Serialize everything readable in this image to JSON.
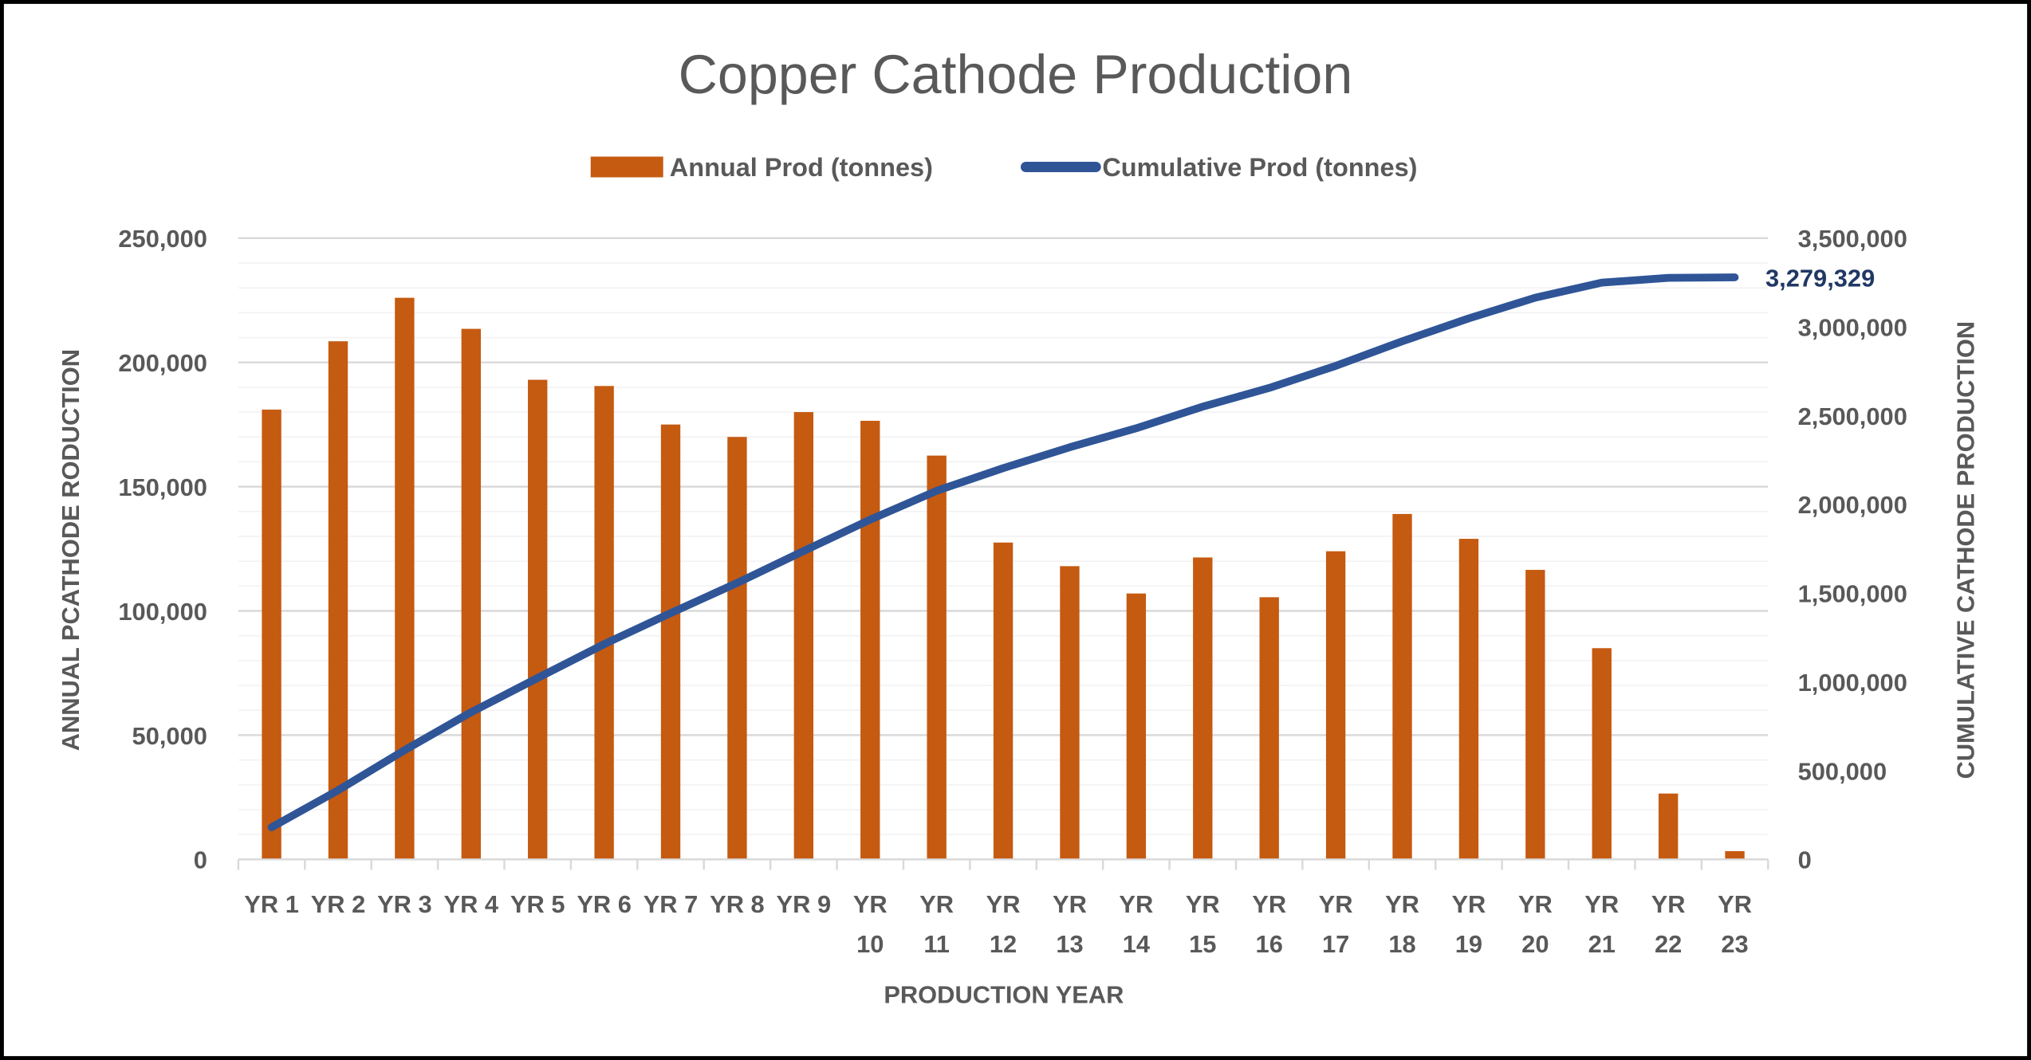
{
  "chart_data": {
    "type": "bar+line",
    "title": "Copper Cathode Production",
    "xlabel": "PRODUCTION YEAR",
    "ylabel": "ANNUAL PCATHODE RODUCTION",
    "y2label": "CUMULATIVE CATHODE PRODUCTION",
    "ylim": [
      0,
      250000
    ],
    "y2lim": [
      0,
      3500000
    ],
    "yticks": [
      "0",
      "50,000",
      "100,000",
      "150,000",
      "200,000",
      "250,000"
    ],
    "y2ticks": [
      "0",
      "500,000",
      "1,000,000",
      "1,500,000",
      "2,000,000",
      "2,500,000",
      "3,000,000",
      "3,500,000"
    ],
    "grid": true,
    "legend_position": "top",
    "categories": [
      "YR 1",
      "YR 2",
      "YR 3",
      "YR 4",
      "YR 5",
      "YR 6",
      "YR 7",
      "YR 8",
      "YR 9",
      "YR 10",
      "YR 11",
      "YR 12",
      "YR 13",
      "YR 14",
      "YR 15",
      "YR 16",
      "YR 17",
      "YR 18",
      "YR 19",
      "YR 20",
      "YR 21",
      "YR 22",
      "YR 23"
    ],
    "series": [
      {
        "name": "Annual Prod (tonnes)",
        "type": "bar",
        "axis": "left",
        "color": "#C55A11",
        "values": [
          181000,
          208500,
          226000,
          213500,
          193000,
          190500,
          175000,
          170000,
          180000,
          176500,
          162500,
          127500,
          118000,
          107000,
          121500,
          105500,
          124000,
          139000,
          129000,
          116500,
          85000,
          26500,
          3329
        ]
      },
      {
        "name": "Cumulative Prod (tonnes)",
        "type": "line",
        "axis": "right",
        "color": "#2F5597",
        "values": [
          181000,
          389500,
          615500,
          829000,
          1022000,
          1212500,
          1387500,
          1557500,
          1737500,
          1914000,
          2076500,
          2204000,
          2322000,
          2429000,
          2550500,
          2656000,
          2780000,
          2919000,
          3048000,
          3164500,
          3249500,
          3276000,
          3279329
        ]
      }
    ],
    "annotations": [
      {
        "series": "Cumulative Prod (tonnes)",
        "category": "YR 23",
        "text": "3,279,329",
        "color": "#203864"
      }
    ]
  }
}
